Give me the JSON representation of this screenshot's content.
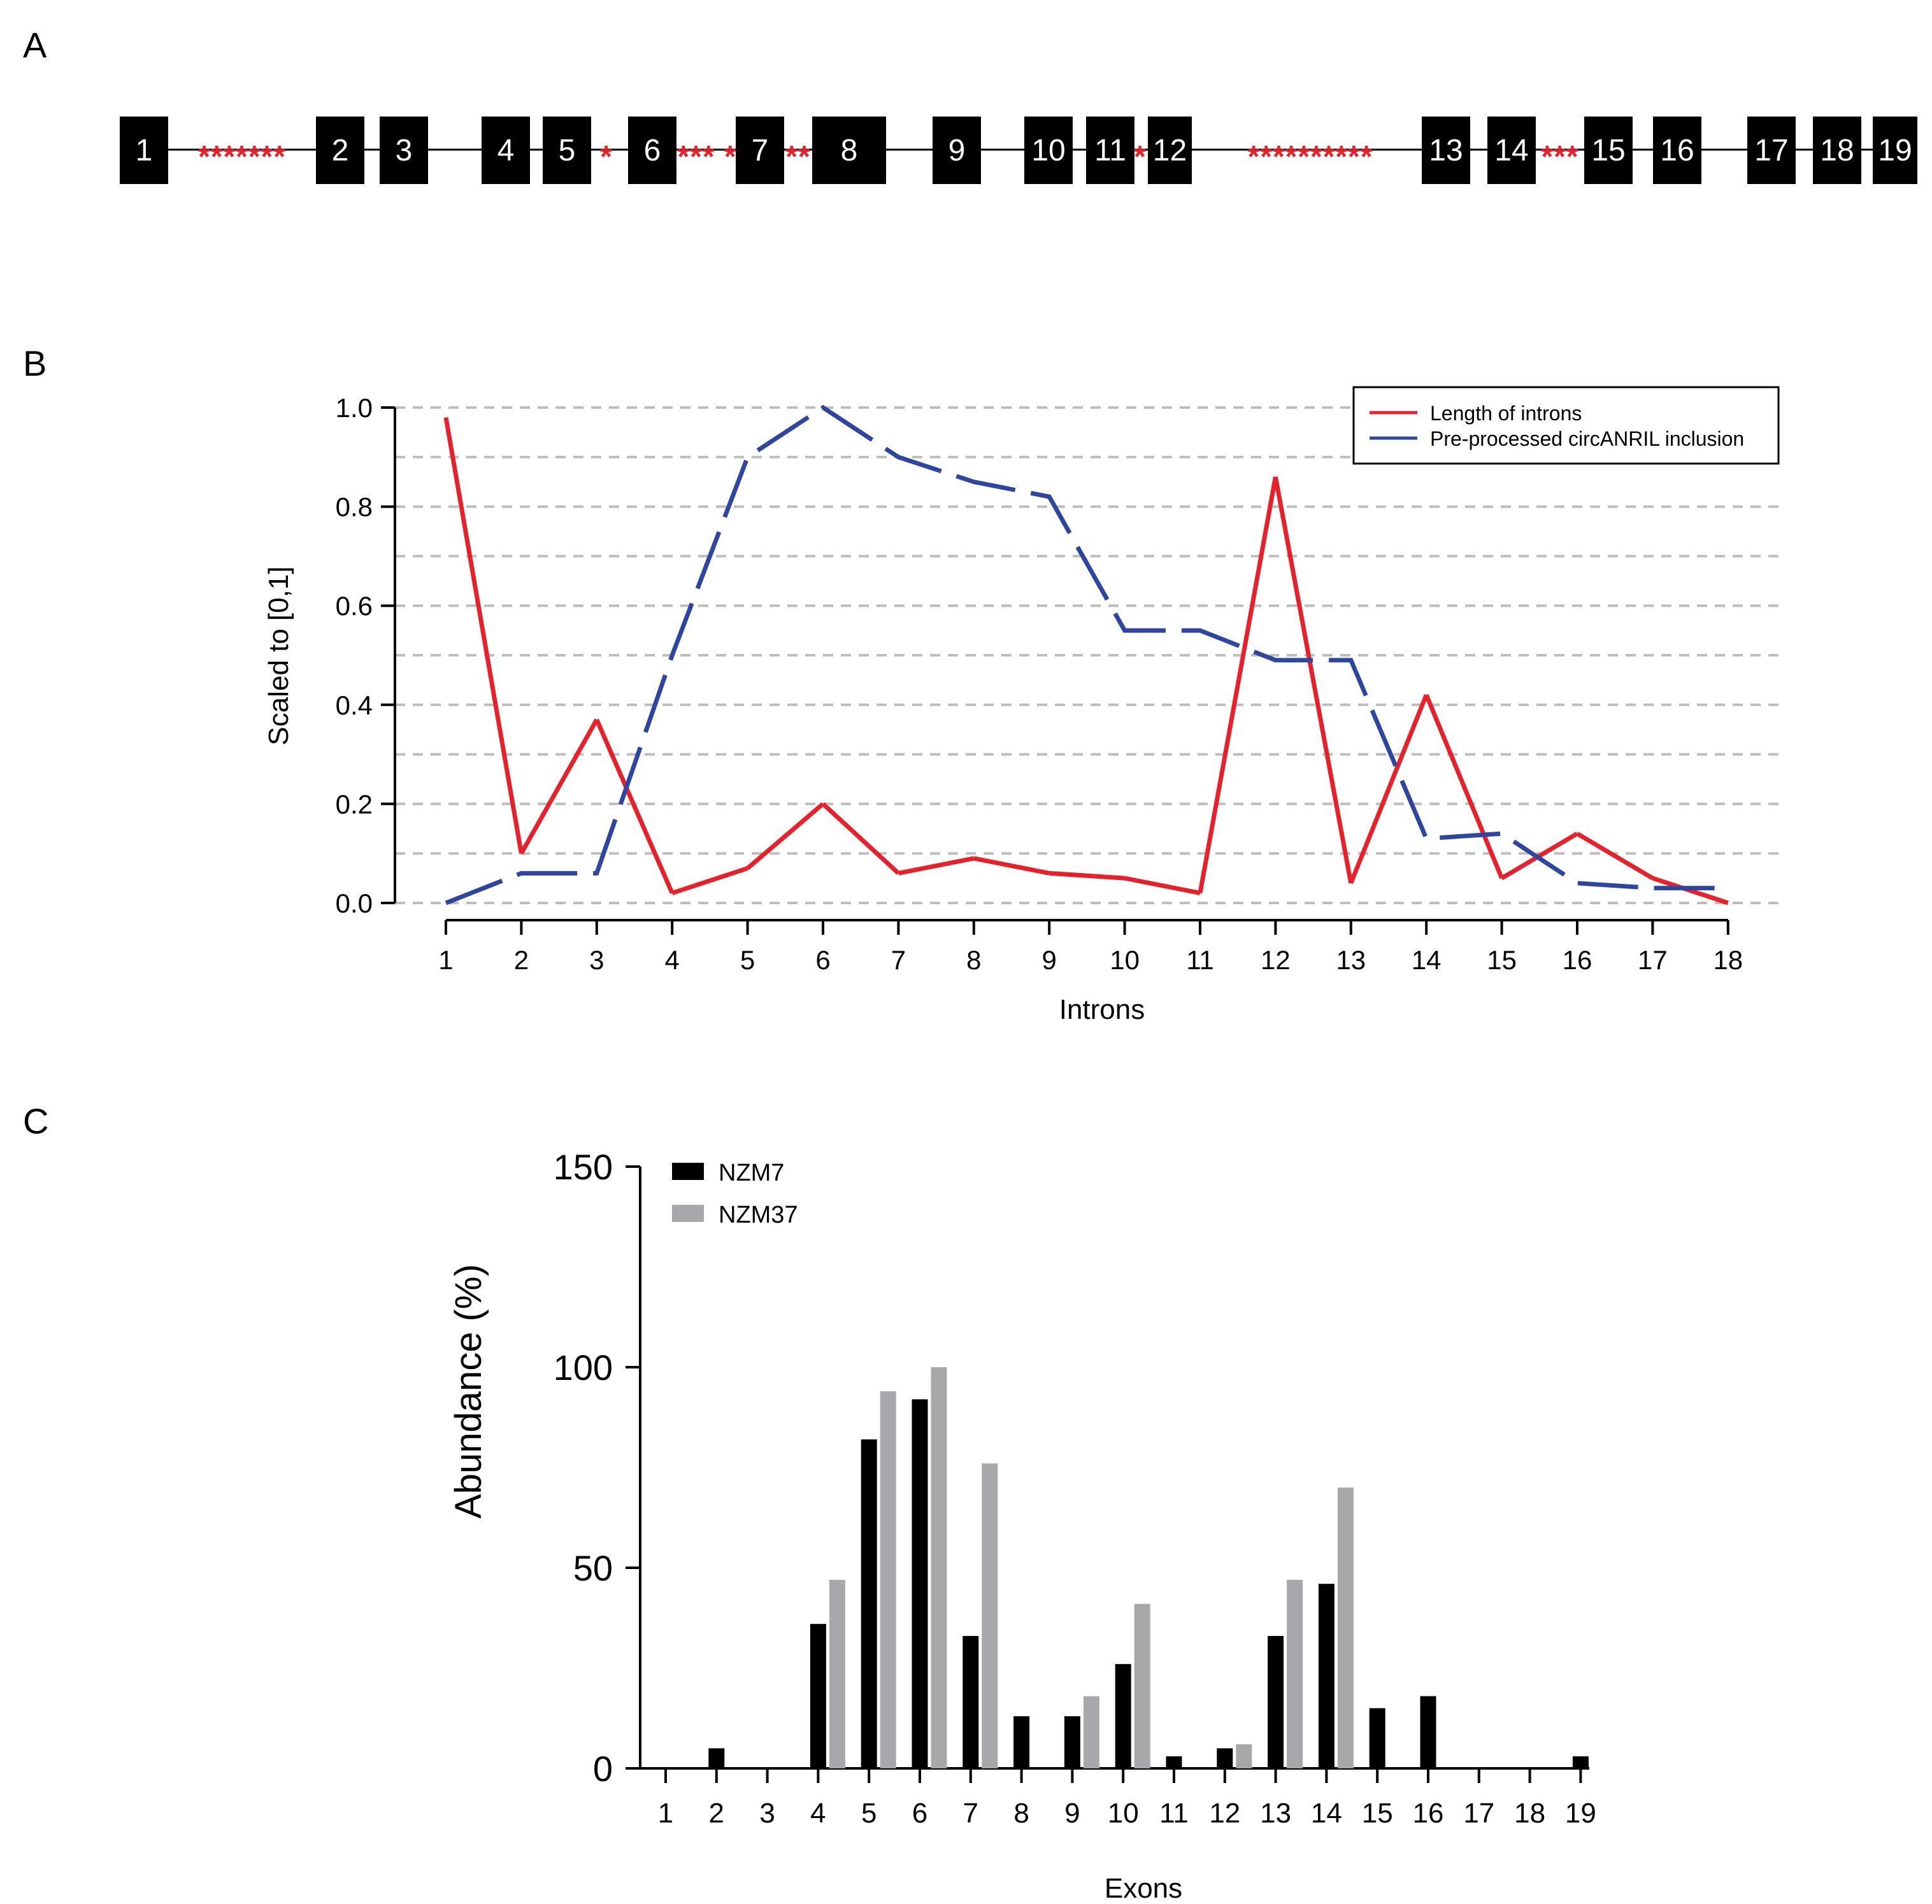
{
  "panel_a": {
    "label": "A",
    "exons": [
      "1",
      "2",
      "3",
      "4",
      "5",
      "6",
      "7",
      "8",
      "9",
      "10",
      "11",
      "12",
      "13",
      "14",
      "15",
      "16",
      "17",
      "18",
      "19"
    ],
    "intron_stars": [
      {
        "after_exon": "1",
        "text": "*******"
      },
      {
        "after_exon": "5",
        "text": "*"
      },
      {
        "after_exon": "6",
        "text": "*** *"
      },
      {
        "after_exon": "7",
        "text": "**"
      },
      {
        "after_exon": "11",
        "text": "*"
      },
      {
        "after_exon": "12",
        "text": "**********"
      },
      {
        "after_exon": "14",
        "text": "***"
      }
    ],
    "colors": {
      "exon": "#000000",
      "exon_text": "#ffffff",
      "star": "#e8202a",
      "line": "#000000"
    }
  },
  "chart_data": [
    {
      "panel_label": "B",
      "type": "line",
      "title": "",
      "xlabel": "Introns",
      "ylabel": "Scaled to [0,1]",
      "x": [
        1,
        2,
        3,
        4,
        5,
        6,
        7,
        8,
        9,
        10,
        11,
        12,
        13,
        14,
        15,
        16,
        17,
        18
      ],
      "xticks": [
        "1",
        "2",
        "3",
        "4",
        "5",
        "6",
        "7",
        "8",
        "9",
        "10",
        "11",
        "12",
        "13",
        "14",
        "15",
        "16",
        "17",
        "18"
      ],
      "ylim": [
        0,
        1.0
      ],
      "yticks": [
        "0.0",
        "0.2",
        "0.4",
        "0.6",
        "0.8",
        "1.0"
      ],
      "grid": "horizontal dashed every 0.1",
      "legend_position": "top-right",
      "series": [
        {
          "name": "Length of introns",
          "color": "#e8202a",
          "values": [
            0.98,
            0.1,
            0.37,
            0.02,
            0.07,
            0.2,
            0.06,
            0.09,
            0.06,
            0.05,
            0.02,
            0.86,
            0.04,
            0.42,
            0.05,
            0.14,
            0.05,
            0.0
          ],
          "line_style": "solid where consecutive points are one rank apart, dashed elsewhere"
        },
        {
          "name": "Pre-processed circANRIL inclusion",
          "color": "#2e46a0",
          "values": [
            0.0,
            0.06,
            0.06,
            0.5,
            0.9,
            1.0,
            0.9,
            0.85,
            0.82,
            0.55,
            0.55,
            0.49,
            0.49,
            0.13,
            0.14,
            0.04,
            0.03,
            0.03
          ],
          "line_style": "long dash"
        }
      ]
    },
    {
      "panel_label": "C",
      "type": "bar",
      "title": "",
      "xlabel": "Exons",
      "ylabel": "Abundance (%)",
      "categories": [
        "1",
        "2",
        "3",
        "4",
        "5",
        "6",
        "7",
        "8",
        "9",
        "10",
        "11",
        "12",
        "13",
        "14",
        "15",
        "16",
        "17",
        "18",
        "19"
      ],
      "ylim": [
        0,
        150
      ],
      "yticks": [
        "0",
        "50",
        "100",
        "150"
      ],
      "legend_position": "top-left",
      "series": [
        {
          "name": "NZM7",
          "color": "#000000",
          "values": [
            0,
            5,
            0,
            36,
            82,
            92,
            33,
            13,
            13,
            26,
            3,
            5,
            33,
            46,
            15,
            18,
            0,
            0,
            3
          ]
        },
        {
          "name": "NZM37",
          "color": "#a8a8ab",
          "values": [
            0,
            0,
            0,
            47,
            94,
            100,
            76,
            0,
            18,
            41,
            0,
            6,
            47,
            70,
            0,
            0,
            0,
            0,
            0
          ]
        }
      ]
    }
  ]
}
